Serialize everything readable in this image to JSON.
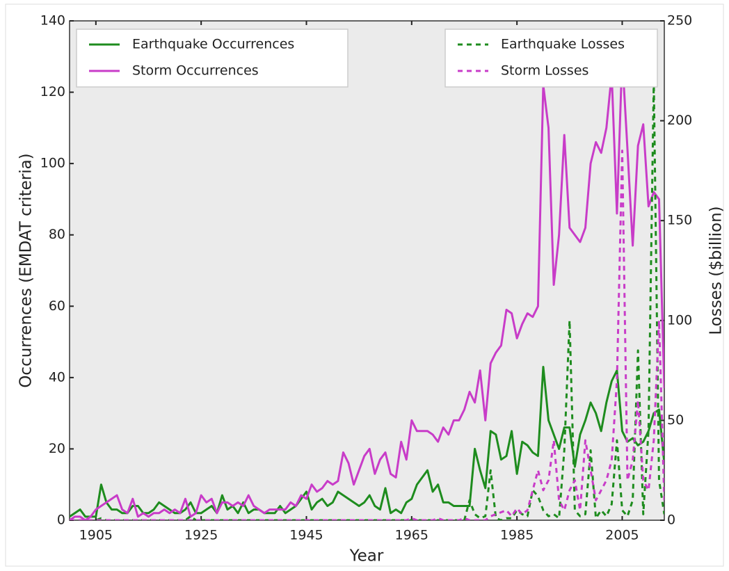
{
  "chart_data": {
    "type": "line",
    "x_label": "Year",
    "y_label": "Occurrences (EMDAT criteria)",
    "y2_label": "Losses ($billion)",
    "x": [
      1900,
      1901,
      1902,
      1903,
      1904,
      1905,
      1906,
      1907,
      1908,
      1909,
      1910,
      1911,
      1912,
      1913,
      1914,
      1915,
      1916,
      1917,
      1918,
      1919,
      1920,
      1921,
      1922,
      1923,
      1924,
      1925,
      1926,
      1927,
      1928,
      1929,
      1930,
      1931,
      1932,
      1933,
      1934,
      1935,
      1936,
      1937,
      1938,
      1939,
      1940,
      1941,
      1942,
      1943,
      1944,
      1945,
      1946,
      1947,
      1948,
      1949,
      1950,
      1951,
      1952,
      1953,
      1954,
      1955,
      1956,
      1957,
      1958,
      1959,
      1960,
      1961,
      1962,
      1963,
      1964,
      1965,
      1966,
      1967,
      1968,
      1969,
      1970,
      1971,
      1972,
      1973,
      1974,
      1975,
      1976,
      1977,
      1978,
      1979,
      1980,
      1981,
      1982,
      1983,
      1984,
      1985,
      1986,
      1987,
      1988,
      1989,
      1990,
      1991,
      1992,
      1993,
      1994,
      1995,
      1996,
      1997,
      1998,
      1999,
      2000,
      2001,
      2002,
      2003,
      2004,
      2005,
      2006,
      2007,
      2008,
      2009,
      2010,
      2011,
      2012,
      2013
    ],
    "series": [
      {
        "name": "Earthquake Occurrences",
        "color": "#1e8c1e",
        "linestyle": "solid",
        "values": [
          1,
          2,
          3,
          1,
          1,
          1,
          10,
          5,
          3,
          3,
          2,
          2,
          4,
          4,
          2,
          2,
          3,
          5,
          4,
          3,
          2,
          2,
          3,
          5,
          2,
          2,
          3,
          4,
          2,
          7,
          3,
          4,
          2,
          5,
          2,
          3,
          3,
          2,
          2,
          2,
          4,
          2,
          3,
          4,
          6,
          8,
          3,
          5,
          6,
          4,
          5,
          8,
          7,
          6,
          5,
          4,
          5,
          7,
          4,
          3,
          9,
          2,
          3,
          2,
          5,
          6,
          10,
          12,
          14,
          8,
          10,
          5,
          5,
          4,
          4,
          4,
          4,
          20,
          14,
          9,
          25,
          24,
          17,
          18,
          25,
          13,
          22,
          21,
          19,
          18,
          43,
          28,
          24,
          20,
          26,
          26,
          15,
          24,
          28,
          33,
          30,
          25,
          33,
          39,
          42,
          25,
          22,
          23,
          21,
          22,
          25,
          30,
          31,
          16
        ]
      },
      {
        "name": "Storm Occurrences",
        "color": "#c83cc8",
        "linestyle": "solid",
        "values": [
          0,
          1,
          1,
          0,
          1,
          3,
          4,
          5,
          6,
          7,
          3,
          2,
          6,
          1,
          2,
          1,
          2,
          2,
          3,
          2,
          3,
          2,
          6,
          1,
          2,
          7,
          5,
          6,
          2,
          5,
          5,
          4,
          5,
          4,
          7,
          4,
          3,
          2,
          3,
          3,
          3,
          3,
          5,
          4,
          7,
          6,
          10,
          8,
          9,
          11,
          10,
          11,
          19,
          16,
          10,
          14,
          18,
          20,
          13,
          17,
          19,
          13,
          12,
          22,
          17,
          28,
          25,
          25,
          25,
          24,
          22,
          26,
          24,
          28,
          28,
          31,
          36,
          33,
          42,
          28,
          44,
          47,
          49,
          59,
          58,
          51,
          55,
          58,
          57,
          60,
          122,
          110,
          66,
          80,
          108,
          82,
          80,
          78,
          82,
          100,
          106,
          103,
          110,
          125,
          86,
          130,
          104,
          77,
          105,
          111,
          88,
          92,
          90,
          37
        ]
      },
      {
        "name": "Earthquake Losses",
        "color": "#1e8c1e",
        "linestyle": "dashed",
        "axis": "y2",
        "values": [
          0,
          0,
          0,
          0,
          0,
          0,
          1,
          0,
          0,
          0,
          0,
          0,
          0,
          0,
          0,
          0,
          0,
          0,
          0,
          0,
          0,
          0,
          0,
          2,
          0,
          0,
          0,
          0,
          0,
          0,
          0,
          0,
          0,
          0,
          0,
          0,
          0,
          0,
          0,
          0,
          0,
          0,
          0,
          0,
          0,
          0,
          0,
          0,
          0,
          0,
          0,
          0,
          0,
          0,
          0,
          0,
          0,
          0,
          0,
          0,
          0,
          0,
          0,
          0,
          0,
          0,
          0,
          0,
          0,
          0,
          0,
          0,
          0,
          0,
          0,
          0,
          10,
          3,
          1,
          2,
          25,
          1,
          0,
          1,
          1,
          5,
          3,
          2,
          15,
          12,
          5,
          2,
          3,
          1,
          35,
          100,
          5,
          2,
          3,
          35,
          1,
          5,
          2,
          8,
          40,
          5,
          2,
          10,
          85,
          3,
          45,
          220,
          20,
          3
        ]
      },
      {
        "name": "Storm Losses",
        "color": "#c83cc8",
        "linestyle": "dashed",
        "axis": "y2",
        "values": [
          0,
          0,
          0,
          0,
          0,
          0,
          0,
          0,
          0,
          0,
          0,
          0,
          0,
          0,
          0,
          0,
          0,
          0,
          0,
          0,
          0,
          0,
          0,
          0,
          0,
          0,
          0,
          0,
          0,
          0,
          0,
          0,
          0,
          0,
          0,
          0,
          0,
          0,
          0,
          0,
          0,
          0,
          0,
          0,
          0,
          0,
          0,
          0,
          0,
          0,
          0,
          0,
          0,
          0,
          0,
          0,
          0,
          0,
          0,
          0,
          0,
          0,
          0,
          0,
          0,
          1,
          0,
          0,
          0,
          0,
          1,
          0,
          0,
          0,
          0,
          1,
          0,
          0,
          0,
          0,
          2,
          3,
          4,
          5,
          2,
          6,
          3,
          5,
          15,
          25,
          15,
          20,
          40,
          10,
          5,
          15,
          20,
          5,
          40,
          25,
          10,
          15,
          20,
          30,
          70,
          185,
          20,
          30,
          60,
          20,
          15,
          40,
          100,
          10
        ]
      }
    ],
    "xlim": [
      1900,
      2013
    ],
    "xticks": [
      1905,
      1925,
      1945,
      1965,
      1985,
      2005
    ],
    "ylim": [
      0,
      140
    ],
    "yticks": [
      0,
      20,
      40,
      60,
      80,
      100,
      120,
      140
    ],
    "y2lim": [
      0,
      250
    ],
    "y2ticks": [
      0,
      50,
      100,
      150,
      200,
      250
    ],
    "legend_loc": "upper left",
    "legend2_loc": "upper right",
    "background": "#ebebeb"
  }
}
